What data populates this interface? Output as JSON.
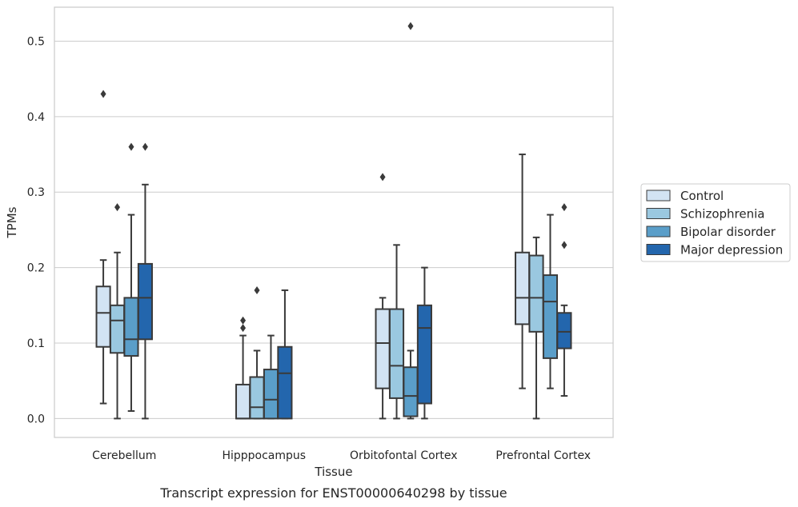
{
  "caption": "Transcript expression for ENST00000640298 by tissue",
  "chart_data": {
    "type": "box",
    "xlabel": "Tissue",
    "ylabel": "TPMs",
    "ylim": [
      -0.025,
      0.545
    ],
    "yticks": [
      0.0,
      0.1,
      0.2,
      0.3,
      0.4,
      0.5
    ],
    "ytick_labels": [
      "0.0",
      "0.1",
      "0.2",
      "0.3",
      "0.4",
      "0.5"
    ],
    "grid": "horizontal",
    "legend_position": "right",
    "categories": [
      "Cerebellum",
      "Hipppocampus",
      "Orbitofontal Cortex",
      "Prefrontal Cortex"
    ],
    "series": [
      {
        "name": "Control",
        "color": "#d2e3f3",
        "boxes": [
          {
            "whislo": 0.02,
            "q1": 0.095,
            "med": 0.14,
            "q3": 0.175,
            "whishi": 0.21,
            "fliers": [
              0.43
            ]
          },
          {
            "whislo": 0.0,
            "q1": 0.0,
            "med": 0.0,
            "q3": 0.045,
            "whishi": 0.11,
            "fliers": [
              0.12,
              0.13
            ]
          },
          {
            "whislo": 0.0,
            "q1": 0.04,
            "med": 0.1,
            "q3": 0.145,
            "whishi": 0.16,
            "fliers": [
              0.32
            ]
          },
          {
            "whislo": 0.04,
            "q1": 0.125,
            "med": 0.16,
            "q3": 0.22,
            "whishi": 0.35,
            "fliers": []
          }
        ]
      },
      {
        "name": "Schizophrenia",
        "color": "#9ac8e0",
        "boxes": [
          {
            "whislo": 0.0,
            "q1": 0.087,
            "med": 0.13,
            "q3": 0.15,
            "whishi": 0.22,
            "fliers": [
              0.28
            ]
          },
          {
            "whislo": 0.0,
            "q1": 0.0,
            "med": 0.015,
            "q3": 0.055,
            "whishi": 0.09,
            "fliers": [
              0.17
            ]
          },
          {
            "whislo": 0.0,
            "q1": 0.027,
            "med": 0.07,
            "q3": 0.145,
            "whishi": 0.23,
            "fliers": []
          },
          {
            "whislo": 0.0,
            "q1": 0.115,
            "med": 0.16,
            "q3": 0.216,
            "whishi": 0.24,
            "fliers": []
          }
        ]
      },
      {
        "name": "Bipolar disorder",
        "color": "#5a9ec9",
        "boxes": [
          {
            "whislo": 0.01,
            "q1": 0.083,
            "med": 0.105,
            "q3": 0.16,
            "whishi": 0.27,
            "fliers": [
              0.36
            ]
          },
          {
            "whislo": 0.0,
            "q1": 0.0,
            "med": 0.025,
            "q3": 0.065,
            "whishi": 0.11,
            "fliers": []
          },
          {
            "whislo": 0.0,
            "q1": 0.003,
            "med": 0.03,
            "q3": 0.068,
            "whishi": 0.09,
            "fliers": [
              0.52
            ]
          },
          {
            "whislo": 0.04,
            "q1": 0.08,
            "med": 0.155,
            "q3": 0.19,
            "whishi": 0.27,
            "fliers": []
          }
        ]
      },
      {
        "name": "Major depression",
        "color": "#2366ad",
        "boxes": [
          {
            "whislo": 0.0,
            "q1": 0.105,
            "med": 0.16,
            "q3": 0.205,
            "whishi": 0.31,
            "fliers": [
              0.36
            ]
          },
          {
            "whislo": 0.0,
            "q1": 0.0,
            "med": 0.06,
            "q3": 0.095,
            "whishi": 0.17,
            "fliers": []
          },
          {
            "whislo": 0.0,
            "q1": 0.02,
            "med": 0.12,
            "q3": 0.15,
            "whishi": 0.2,
            "fliers": []
          },
          {
            "whislo": 0.03,
            "q1": 0.093,
            "med": 0.115,
            "q3": 0.14,
            "whishi": 0.15,
            "fliers": [
              0.23,
              0.28
            ]
          }
        ]
      }
    ]
  }
}
